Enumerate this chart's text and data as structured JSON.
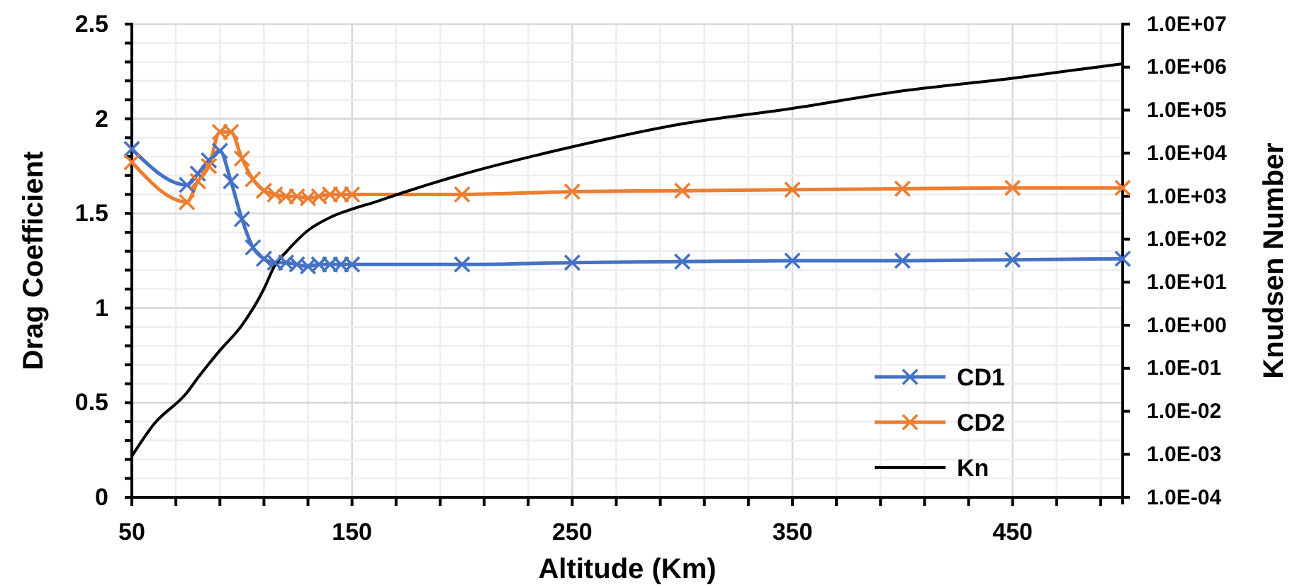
{
  "chart_data": {
    "type": "line",
    "xlabel": "Altitude (Km)",
    "ylabel": "Drag Coefficient",
    "y2label": "Knudsen Number",
    "xlim": [
      50,
      500
    ],
    "xticks": [
      50,
      {
        "value": 70,
        "label": null
      },
      {
        "value": 90,
        "label": null
      },
      {
        "value": 110,
        "label": null
      },
      {
        "value": 130,
        "label": null
      },
      150,
      {
        "value": 170,
        "label": null
      },
      {
        "value": 190,
        "label": null
      },
      {
        "value": 210,
        "label": null
      },
      {
        "value": 230,
        "label": null
      },
      250,
      {
        "value": 270,
        "label": null
      },
      {
        "value": 290,
        "label": null
      },
      {
        "value": 310,
        "label": null
      },
      {
        "value": 330,
        "label": null
      },
      350,
      {
        "value": 370,
        "label": null
      },
      {
        "value": 390,
        "label": null
      },
      {
        "value": 410,
        "label": null
      },
      {
        "value": 430,
        "label": null
      },
      450,
      {
        "value": 470,
        "label": null
      },
      {
        "value": 490,
        "label": null
      }
    ],
    "ylim": [
      0,
      2.5
    ],
    "yticks": [
      0,
      {
        "value": 0.1,
        "label": null
      },
      {
        "value": 0.2,
        "label": null
      },
      {
        "value": 0.3,
        "label": null
      },
      {
        "value": 0.4,
        "label": null
      },
      0.5,
      {
        "value": 0.6,
        "label": null
      },
      {
        "value": 0.7,
        "label": null
      },
      {
        "value": 0.8,
        "label": null
      },
      {
        "value": 0.9,
        "label": null
      },
      1,
      {
        "value": 1.1,
        "label": null
      },
      {
        "value": 1.2,
        "label": null
      },
      {
        "value": 1.3,
        "label": null
      },
      {
        "value": 1.4,
        "label": null
      },
      1.5,
      {
        "value": 1.6,
        "label": null
      },
      {
        "value": 1.7,
        "label": null
      },
      {
        "value": 1.8,
        "label": null
      },
      {
        "value": 1.9,
        "label": null
      },
      2,
      {
        "value": 2.1,
        "label": null
      },
      {
        "value": 2.2,
        "label": null
      },
      {
        "value": 2.3,
        "label": null
      },
      {
        "value": 2.4,
        "label": null
      },
      2.5
    ],
    "y2lim": [
      0.0001,
      10000000
    ],
    "y2ticks": [
      {
        "value": 0.0001,
        "label": "1.0E-04"
      },
      {
        "value": 0.001,
        "label": "1.0E-03"
      },
      {
        "value": 0.01,
        "label": "1.0E-02"
      },
      {
        "value": 0.1,
        "label": "1.0E-01"
      },
      {
        "value": 1,
        "label": "1.0E+00"
      },
      {
        "value": 10,
        "label": "1.0E+01"
      },
      {
        "value": 100,
        "label": "1.0E+02"
      },
      {
        "value": 1000,
        "label": "1.0E+03"
      },
      {
        "value": 10000,
        "label": "1.0E+04"
      },
      {
        "value": 100000,
        "label": "1.0E+05"
      },
      {
        "value": 1000000,
        "label": "1.0E+06"
      },
      {
        "value": 10000000,
        "label": "1.0E+07"
      }
    ],
    "log": "y2",
    "grid": true,
    "legend": "bottom right",
    "line_style": "solid",
    "series": [
      {
        "name": "CD1",
        "color": "#4472c4",
        "marker": "cross",
        "x": [
          50,
          75,
          80,
          85,
          90,
          95,
          100,
          105,
          110,
          115,
          120,
          125,
          130,
          135,
          140,
          145,
          150,
          200,
          250,
          300,
          350,
          400,
          450,
          500
        ],
        "values": [
          1.84,
          1.65,
          1.71,
          1.78,
          1.83,
          1.67,
          1.47,
          1.32,
          1.26,
          1.24,
          1.24,
          1.23,
          1.22,
          1.23,
          1.23,
          1.23,
          1.23,
          1.23,
          1.24,
          1.245,
          1.25,
          1.25,
          1.255,
          1.26
        ]
      },
      {
        "name": "CD2",
        "color": "#ed7d31",
        "marker": "cross",
        "x": [
          50,
          75,
          80,
          85,
          90,
          95,
          100,
          105,
          110,
          115,
          120,
          125,
          130,
          135,
          140,
          145,
          150,
          200,
          250,
          300,
          350,
          400,
          450,
          500
        ],
        "values": [
          1.77,
          1.56,
          1.67,
          1.75,
          1.93,
          1.93,
          1.79,
          1.68,
          1.62,
          1.6,
          1.59,
          1.59,
          1.58,
          1.59,
          1.6,
          1.6,
          1.6,
          1.6,
          1.615,
          1.62,
          1.625,
          1.63,
          1.635,
          1.635
        ]
      },
      {
        "name": "Kn",
        "color": "#000000",
        "marker": "none",
        "axis": "y2",
        "x": [
          50,
          60,
          75,
          80,
          90,
          100,
          110,
          115,
          120,
          130,
          140,
          150,
          160,
          175,
          200,
          250,
          300,
          350,
          400,
          450,
          500
        ],
        "values": [
          0.0009,
          0.005,
          0.027,
          0.06,
          0.26,
          1,
          7,
          25,
          50,
          160,
          320,
          500,
          720,
          1300,
          3200,
          14000,
          48000,
          110000,
          280000,
          550000,
          1200000
        ]
      }
    ]
  }
}
